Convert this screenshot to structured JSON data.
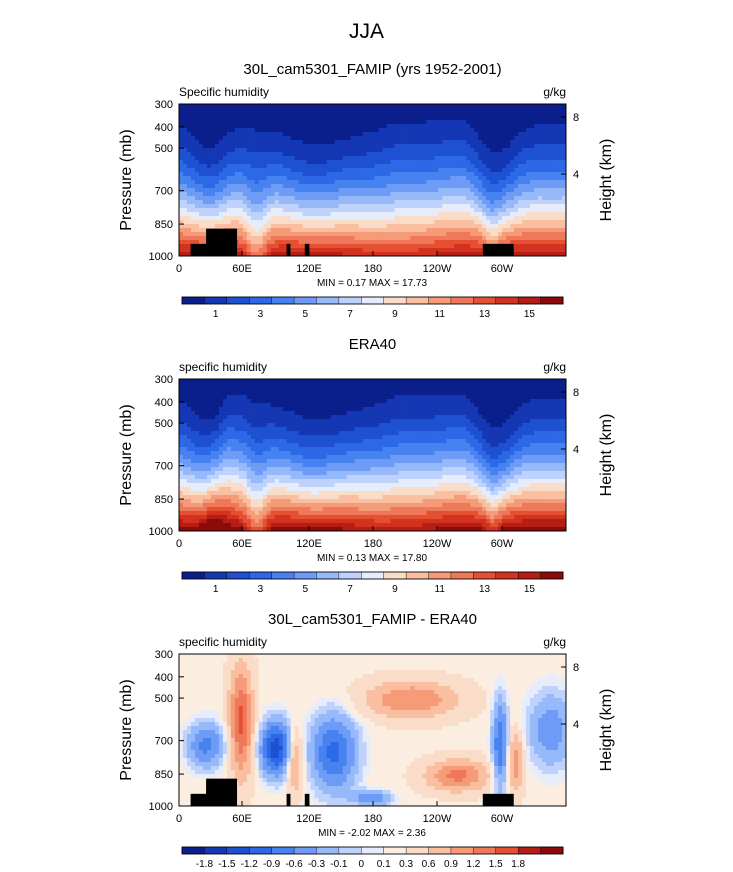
{
  "page_title": "JJA",
  "chart_data": [
    {
      "type": "heatmap",
      "title": "30L_cam5301_FAMIP (yrs 1952-2001)",
      "left_label": "Specific humidity",
      "right_label": "g/kg",
      "ylabel": "Pressure (mb)",
      "y2label": "Height (km)",
      "yticks": [
        "300",
        "400",
        "500",
        "700",
        "850",
        "1000"
      ],
      "y2ticks": [
        "8",
        "4"
      ],
      "xticks": [
        "0",
        "60E",
        "120E",
        "180",
        "120W",
        "60W"
      ],
      "stats": "MIN =  0.17  MAX =  17.73",
      "colorbar": {
        "labels": [
          "1",
          "3",
          "5",
          "7",
          "9",
          "11",
          "13",
          "15"
        ],
        "colors": [
          "#0a1e8c",
          "#1437b4",
          "#1e50d2",
          "#2d69e6",
          "#4682f0",
          "#6e9bf5",
          "#96b9fa",
          "#bed2fc",
          "#e6ecfa",
          "#faddc8",
          "#fabea0",
          "#f59b78",
          "#f0785a",
          "#e65032",
          "#d2321e",
          "#b41e14",
          "#8c0a0a"
        ]
      }
    },
    {
      "type": "heatmap",
      "title": "ERA40",
      "left_label": "specific humidity",
      "right_label": "g/kg",
      "ylabel": "Pressure (mb)",
      "y2label": "Height (km)",
      "yticks": [
        "300",
        "400",
        "500",
        "700",
        "850",
        "1000"
      ],
      "y2ticks": [
        "8",
        "4"
      ],
      "xticks": [
        "0",
        "60E",
        "120E",
        "180",
        "120W",
        "60W"
      ],
      "stats": "MIN =  0.13  MAX =  17.80",
      "colorbar": {
        "labels": [
          "1",
          "3",
          "5",
          "7",
          "9",
          "11",
          "13",
          "15"
        ],
        "colors": [
          "#0a1e8c",
          "#1437b4",
          "#1e50d2",
          "#2d69e6",
          "#4682f0",
          "#6e9bf5",
          "#96b9fa",
          "#bed2fc",
          "#e6ecfa",
          "#faddc8",
          "#fabea0",
          "#f59b78",
          "#f0785a",
          "#e65032",
          "#d2321e",
          "#b41e14",
          "#8c0a0a"
        ]
      }
    },
    {
      "type": "heatmap",
      "title": "30L_cam5301_FAMIP - ERA40",
      "left_label": "specific humidity",
      "right_label": "g/kg",
      "ylabel": "Pressure (mb)",
      "y2label": "Height (km)",
      "yticks": [
        "300",
        "400",
        "500",
        "700",
        "850",
        "1000"
      ],
      "y2ticks": [
        "8",
        "4"
      ],
      "xticks": [
        "0",
        "60E",
        "120E",
        "180",
        "120W",
        "60W"
      ],
      "stats": "MIN = -2.02  MAX =  2.36",
      "colorbar": {
        "labels": [
          "-1.8",
          "-1.5",
          "-1.2",
          "-0.9",
          "-0.6",
          "-0.3",
          "-0.1",
          "0",
          "0.1",
          "0.3",
          "0.6",
          "0.9",
          "1.2",
          "1.5",
          "1.8"
        ],
        "colors": [
          "#0a1e8c",
          "#1437b4",
          "#1e50d2",
          "#2d69e6",
          "#4682f0",
          "#6e9bf5",
          "#96b9fa",
          "#bed2fc",
          "#e6ecfa",
          "#fbeee0",
          "#faddc8",
          "#fabea0",
          "#f59b78",
          "#f0785a",
          "#e65032",
          "#b41e14",
          "#8c0a0a"
        ]
      }
    }
  ]
}
